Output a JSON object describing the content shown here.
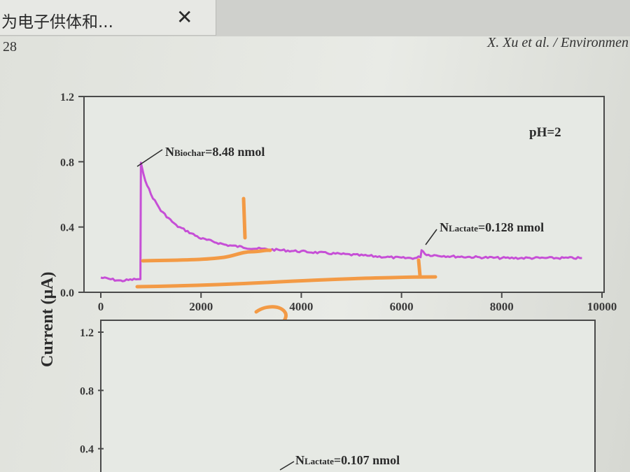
{
  "browser": {
    "tab_title": "为电子供体和...",
    "close_icon": "close-icon",
    "close_glyph": "✕"
  },
  "document": {
    "page_number": "28",
    "running_header": "X. Xu et al. / Environmen"
  },
  "chart_data": [
    {
      "type": "line",
      "ylabel": "Current (μA)",
      "xlim": [
        0,
        10000
      ],
      "ylim": [
        0,
        1.2
      ],
      "x_ticks": [
        "0",
        "2000",
        "4000",
        "6000",
        "8000",
        "10000"
      ],
      "y_ticks": [
        "0.0",
        "0.4",
        "0.8",
        "1.2"
      ],
      "condition_label": "pH=2",
      "line_color": "#c64fd6",
      "annotations": [
        {
          "main": "N",
          "sub": "Biochar",
          "suffix": "=8.48 nmol",
          "x": 780,
          "y": 0.8
        },
        {
          "main": "N",
          "sub": "Lactate",
          "suffix": "=0.128 nmol",
          "x": 6400,
          "y": 0.29
        }
      ],
      "series": [
        {
          "x": [
            0,
            400,
            700,
            790,
            800,
            850,
            1000,
            1200,
            1500,
            2000,
            2500,
            3000,
            3500,
            4000,
            5000,
            6000,
            6300,
            6380,
            6400,
            6500,
            7000,
            8000,
            9000,
            9600
          ],
          "y": [
            0.09,
            0.07,
            0.08,
            0.08,
            0.79,
            0.72,
            0.6,
            0.5,
            0.41,
            0.33,
            0.29,
            0.27,
            0.26,
            0.25,
            0.23,
            0.21,
            0.21,
            0.22,
            0.26,
            0.23,
            0.22,
            0.21,
            0.21,
            0.21
          ]
        }
      ],
      "handwriting": {
        "color": "#f39a45",
        "labels": [
          "1",
          "2"
        ]
      }
    },
    {
      "type": "line",
      "ylim": [
        0,
        1.2
      ],
      "y_ticks": [
        "0.4",
        "0.8",
        "1.2"
      ],
      "annotations": [
        {
          "main": "N",
          "sub": "Lactate",
          "suffix": "=0.107 nmol"
        }
      ]
    }
  ]
}
